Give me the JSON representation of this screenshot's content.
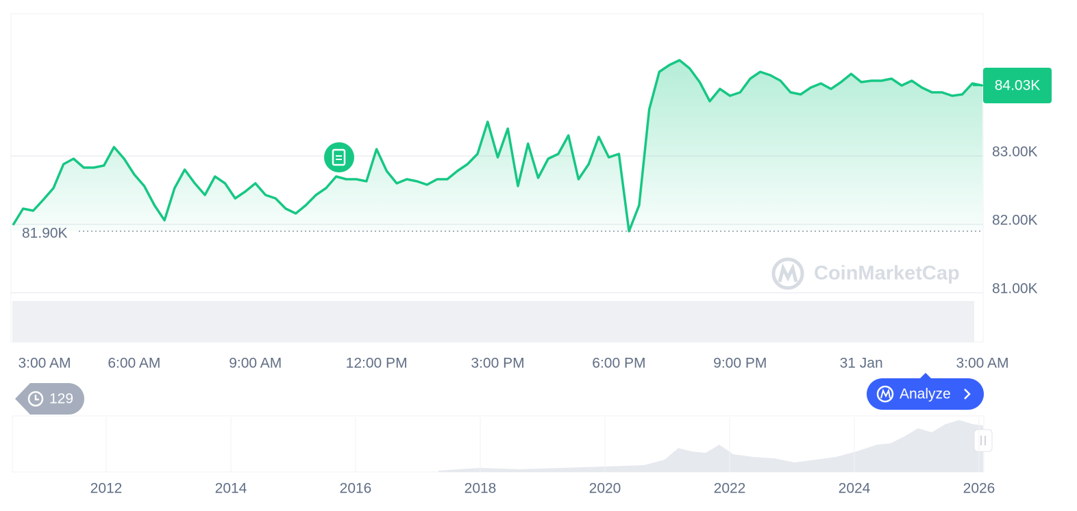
{
  "chart_data": {
    "type": "line",
    "categories": [
      "3:00 AM",
      null,
      null,
      null,
      null,
      null,
      null,
      null,
      null,
      null,
      null,
      null,
      "6:00 AM",
      null,
      null,
      null,
      null,
      null,
      null,
      null,
      null,
      null,
      null,
      null,
      "9:00 AM",
      null,
      null,
      null,
      null,
      null,
      null,
      null,
      null,
      null,
      null,
      null,
      "12:00 PM",
      null,
      null,
      null,
      null,
      null,
      null,
      null,
      null,
      null,
      null,
      null,
      "3:00 PM",
      null,
      null,
      null,
      null,
      null,
      null,
      null,
      null,
      null,
      null,
      null,
      "6:00 PM",
      null,
      null,
      null,
      null,
      null,
      null,
      null,
      null,
      null,
      null,
      null,
      "9:00 PM",
      null,
      null,
      null,
      null,
      null,
      null,
      null,
      null,
      null,
      null,
      null,
      "31 Jan",
      null,
      null,
      null,
      null,
      null,
      null,
      null,
      null,
      null,
      null,
      null,
      "3:00 AM"
    ],
    "series": [
      {
        "color": "#16c784",
        "values": [
          81990,
          82230,
          82200,
          82360,
          82530,
          82880,
          82960,
          82830,
          82830,
          82860,
          83130,
          82960,
          82730,
          82560,
          82280,
          82060,
          82530,
          82800,
          82600,
          82430,
          82700,
          82600,
          82380,
          82480,
          82600,
          82430,
          82380,
          82230,
          82160,
          82280,
          82430,
          82530,
          82700,
          82660,
          82660,
          82630,
          83100,
          82780,
          82600,
          82660,
          82630,
          82580,
          82660,
          82660,
          82780,
          82880,
          83030,
          83500,
          82980,
          83400,
          82560,
          83180,
          82680,
          82960,
          83030,
          83300,
          82660,
          82880,
          83280,
          82980,
          83030,
          81900,
          82280,
          83680,
          84230,
          84330,
          84400,
          84280,
          84080,
          83800,
          83980,
          83880,
          83930,
          84130,
          84230,
          84180,
          84100,
          83930,
          83900,
          84000,
          84060,
          83980,
          84080,
          84200,
          84080,
          84100,
          84100,
          84130,
          84030,
          84100,
          84000,
          83930,
          83930,
          83880,
          83900,
          84060,
          84030
        ]
      }
    ],
    "ylim": [
      80280,
      85080
    ],
    "yticks": [
      {
        "value": 81000,
        "label": "81.00K"
      },
      {
        "value": 82000,
        "label": "82.00K"
      },
      {
        "value": 83000,
        "label": "83.00K"
      }
    ],
    "grid": true,
    "current_price": {
      "value": 84030,
      "label": "84.03K"
    },
    "low": {
      "value": 81900,
      "label": "81.90K"
    },
    "watermark": "CoinMarketCap",
    "history_count": "129",
    "analyze_button": "Analyze",
    "navigator_labels": [
      "2012",
      "2014",
      "2016",
      "2018",
      "2020",
      "2022",
      "2024",
      "2026"
    ]
  }
}
